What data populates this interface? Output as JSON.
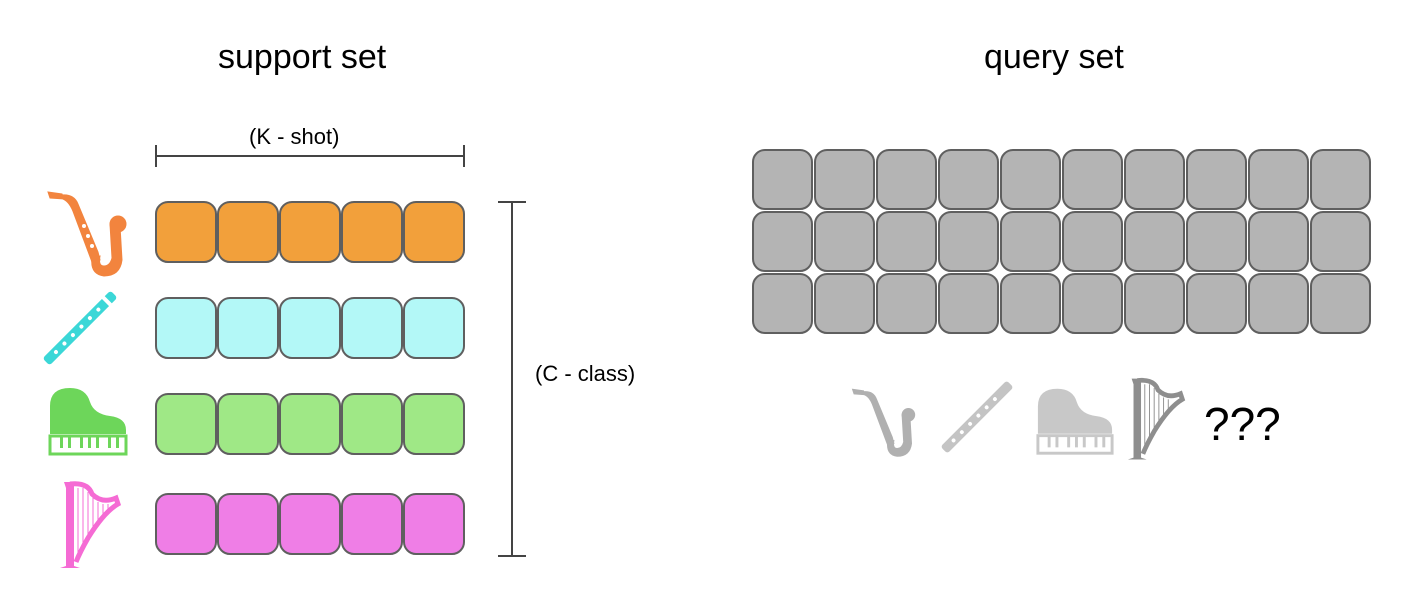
{
  "support": {
    "title": "support set",
    "k_label": "(K - shot)",
    "c_label": "(C - class)",
    "rows": [
      {
        "icon": "saxophone-icon",
        "color": "#f2a03b"
      },
      {
        "icon": "flute-icon",
        "color": "#b3f8f7"
      },
      {
        "icon": "piano-icon",
        "color": "#9fe886"
      },
      {
        "icon": "harp-icon",
        "color": "#ef7ee6"
      }
    ],
    "shots": 5,
    "icon_colors": {
      "saxophone": "#f2843e",
      "flute": "#3bd7d7",
      "piano": "#6dd65a",
      "harp": "#f56bd4"
    }
  },
  "query": {
    "title": "query set",
    "rows": 3,
    "cols": 10,
    "cell_color": "#b4b4b4",
    "icons": [
      "saxophone-icon",
      "flute-icon",
      "piano-icon",
      "harp-icon"
    ],
    "icon_colors": [
      "#b0b0b0",
      "#c4c4c4",
      "#c8c8c8",
      "#8e8e8e"
    ],
    "unknown_label": "???"
  },
  "colors": {
    "border": "#5f5f5f",
    "bracket": "#444444"
  }
}
